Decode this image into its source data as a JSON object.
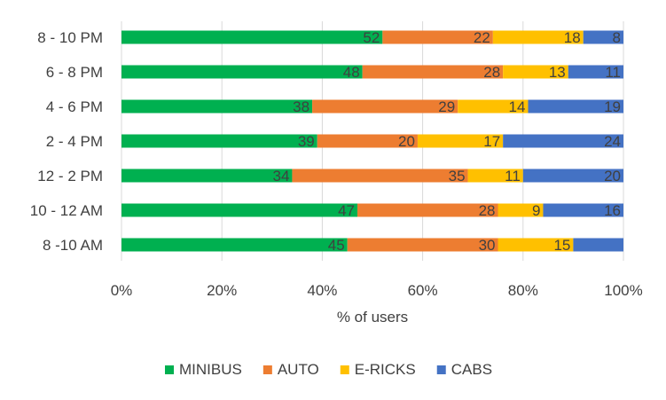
{
  "chart_data": {
    "type": "bar",
    "orientation": "horizontal",
    "stacked": "percent",
    "categories": [
      "8 - 10 PM",
      "6 - 8 PM",
      "4 - 6 PM",
      "2 - 4 PM",
      "12 - 2  PM",
      "10 - 12 AM",
      "8 -10 AM"
    ],
    "series": [
      {
        "name": "MINIBUS",
        "color": "#00B050",
        "values": [
          52,
          48,
          38,
          39,
          34,
          47,
          45
        ],
        "labels": [
          "52",
          "48",
          "38",
          "39",
          "34",
          "47",
          "45"
        ]
      },
      {
        "name": "AUTO",
        "color": "#ED7D31",
        "values": [
          22,
          28,
          29,
          20,
          35,
          28,
          30
        ],
        "labels": [
          "22",
          "28",
          "29",
          "20",
          "35",
          "28",
          "30"
        ]
      },
      {
        "name": "E-RICKS",
        "color": "#FFC000",
        "values": [
          18,
          13,
          14,
          17,
          11,
          9,
          15
        ],
        "labels": [
          "18",
          "13",
          "14",
          "17",
          "11",
          "9",
          "15"
        ]
      },
      {
        "name": "CABS",
        "color": "#4472C4",
        "values": [
          8,
          11,
          19,
          24,
          20,
          16,
          10
        ],
        "labels": [
          "8",
          "11",
          "19",
          "24",
          "20",
          "16",
          ""
        ]
      }
    ],
    "xlabel": "% of users",
    "ylabel": "",
    "xlim": [
      0,
      100
    ],
    "xticks": [
      "0%",
      "20%",
      "40%",
      "60%",
      "80%",
      "100%"
    ],
    "grid": "vertical",
    "legend": "bottom"
  }
}
